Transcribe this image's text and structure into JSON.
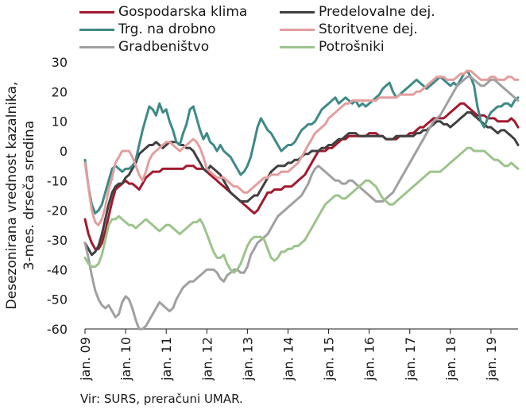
{
  "chart_data": {
    "type": "line",
    "ylabel": [
      "Desezonirana vrednost kazalnika,",
      "3-mes. drseča sredina"
    ],
    "ylim": [
      -60,
      30
    ],
    "yticks": [
      30,
      20,
      10,
      0,
      -10,
      -20,
      -30,
      -40,
      -50,
      -60
    ],
    "x_start": "2009-01",
    "x_end": "2019-04",
    "xtick_labels": [
      "jan. 09",
      "jan. 10",
      "jan. 11",
      "jan. 12",
      "jan. 13",
      "jan. 14",
      "jan. 15",
      "jan. 16",
      "jan. 17",
      "jan. 18",
      "jan. 19"
    ],
    "legend_position": "top",
    "source": "Vir: SURS, preračuni UMAR.",
    "series": [
      {
        "name": "Gospodarska klima",
        "color": "#A3192E",
        "values": [
          -23,
          -28,
          -31,
          -33,
          -33,
          -31,
          -27,
          -22,
          -17,
          -13,
          -12,
          -11,
          -10,
          -11,
          -11,
          -12,
          -13,
          -11,
          -9,
          -8,
          -7,
          -7,
          -7,
          -6,
          -6,
          -6,
          -6,
          -6,
          -6,
          -6,
          -5,
          -5,
          -5,
          -6,
          -6,
          -6,
          -7,
          -8,
          -9,
          -10,
          -11,
          -12,
          -13,
          -14,
          -15,
          -16,
          -17,
          -18,
          -19,
          -20,
          -21,
          -20,
          -18,
          -16,
          -14,
          -14,
          -13,
          -13,
          -13,
          -12,
          -12,
          -12,
          -11,
          -10,
          -9,
          -8,
          -6,
          -4,
          -2,
          0,
          0,
          0,
          1,
          1,
          2,
          3,
          4,
          4,
          5,
          5,
          5,
          5,
          5,
          5,
          6,
          6,
          6,
          5,
          5,
          4,
          4,
          4,
          4,
          5,
          5,
          5,
          6,
          6,
          7,
          8,
          8,
          9,
          10,
          11,
          11,
          11,
          11,
          12,
          13,
          14,
          15,
          16,
          16,
          15,
          14,
          13,
          12,
          12,
          12,
          11,
          11,
          11,
          10,
          10,
          10,
          10,
          11,
          10,
          8
        ]
      },
      {
        "name": "Predelovalne dej.",
        "color": "#404040",
        "values": [
          -31,
          -33,
          -35,
          -34,
          -32,
          -28,
          -23,
          -18,
          -14,
          -12,
          -11,
          -11,
          -9,
          -8,
          -6,
          -4,
          -1,
          0,
          1,
          2,
          2,
          3,
          2,
          1,
          2,
          3,
          3,
          3,
          2,
          2,
          1,
          1,
          0,
          -2,
          -4,
          -6,
          -7,
          -5,
          -6,
          -7,
          -8,
          -10,
          -12,
          -14,
          -15,
          -16,
          -17,
          -17,
          -17,
          -16,
          -15,
          -15,
          -13,
          -11,
          -9,
          -7,
          -6,
          -5,
          -5,
          -5,
          -4,
          -4,
          -3,
          -3,
          -2,
          -1,
          -1,
          0,
          0,
          0,
          1,
          1,
          2,
          2,
          3,
          4,
          4,
          5,
          6,
          6,
          6,
          5,
          5,
          5,
          5,
          5,
          5,
          5,
          5,
          4,
          4,
          4,
          5,
          5,
          5,
          5,
          5,
          5,
          6,
          6,
          7,
          7,
          8,
          9,
          10,
          10,
          9,
          9,
          8,
          9,
          10,
          11,
          12,
          13,
          13,
          12,
          11,
          10,
          9,
          8,
          8,
          7,
          6,
          7,
          7,
          6,
          5,
          4,
          2
        ]
      },
      {
        "name": "Trg. na drobno",
        "color": "#3E8A86",
        "values": [
          -3,
          -12,
          -18,
          -21,
          -20,
          -18,
          -14,
          -10,
          -6,
          -5,
          -6,
          -7,
          -6,
          -6,
          -5,
          -3,
          2,
          7,
          11,
          15,
          14,
          12,
          16,
          13,
          14,
          10,
          7,
          3,
          2,
          6,
          9,
          14,
          15,
          11,
          7,
          4,
          6,
          3,
          2,
          0,
          2,
          0,
          -1,
          -2,
          -4,
          -6,
          -8,
          -7,
          -5,
          -2,
          3,
          8,
          11,
          9,
          7,
          6,
          4,
          2,
          0,
          1,
          2,
          2,
          3,
          5,
          7,
          8,
          9,
          9,
          10,
          12,
          14,
          15,
          16,
          17,
          18,
          16,
          17,
          18,
          17,
          16,
          17,
          15,
          16,
          15,
          16,
          17,
          18,
          19,
          21,
          22,
          23,
          20,
          18,
          19,
          20,
          21,
          22,
          23,
          24,
          23,
          22,
          21,
          22,
          23,
          24,
          25,
          24,
          23,
          22,
          23,
          22,
          24,
          26,
          27,
          25,
          22,
          15,
          10,
          8,
          11,
          13,
          14,
          15,
          15,
          16,
          16,
          15,
          17,
          18
        ]
      },
      {
        "name": "Storitvene dej.",
        "color": "#E39E9E",
        "values": [
          -4,
          -12,
          -20,
          -24,
          -25,
          -23,
          -19,
          -13,
          -9,
          -4,
          -2,
          0,
          0,
          0,
          -2,
          -5,
          -8,
          -10,
          -7,
          -3,
          -1,
          0,
          1,
          2,
          3,
          3,
          2,
          1,
          0,
          1,
          2,
          3,
          4,
          3,
          1,
          -2,
          -6,
          -7,
          -8,
          -9,
          -9,
          -9,
          -10,
          -11,
          -12,
          -12,
          -13,
          -14,
          -14,
          -13,
          -12,
          -11,
          -10,
          -9,
          -9,
          -8,
          -8,
          -8,
          -7,
          -7,
          -7,
          -6,
          -5,
          -4,
          -2,
          0,
          2,
          4,
          6,
          7,
          8,
          9,
          11,
          12,
          13,
          14,
          15,
          16,
          16,
          17,
          17,
          17,
          17,
          17,
          17,
          17,
          17,
          18,
          18,
          18,
          18,
          18,
          18,
          19,
          19,
          19,
          19,
          19,
          20,
          20,
          21,
          22,
          23,
          24,
          25,
          25,
          25,
          24,
          24,
          24,
          25,
          26,
          26,
          27,
          27,
          26,
          25,
          24,
          24,
          24,
          25,
          25,
          24,
          24,
          24,
          25,
          25,
          24,
          24
        ]
      },
      {
        "name": "Gradbeništvo",
        "color": "#A0A0A0",
        "values": [
          -31,
          -36,
          -42,
          -47,
          -50,
          -52,
          -53,
          -52,
          -54,
          -56,
          -55,
          -51,
          -49,
          -50,
          -53,
          -57,
          -60,
          -60,
          -59,
          -57,
          -55,
          -53,
          -51,
          -52,
          -53,
          -54,
          -53,
          -50,
          -48,
          -46,
          -45,
          -44,
          -44,
          -43,
          -42,
          -41,
          -40,
          -40,
          -40,
          -41,
          -43,
          -44,
          -42,
          -41,
          -40,
          -40,
          -41,
          -41,
          -39,
          -35,
          -33,
          -31,
          -30,
          -29,
          -28,
          -26,
          -24,
          -22,
          -21,
          -20,
          -19,
          -18,
          -17,
          -16,
          -15,
          -13,
          -11,
          -8,
          -6,
          -5,
          -6,
          -7,
          -8,
          -9,
          -10,
          -10,
          -11,
          -11,
          -10,
          -10,
          -11,
          -12,
          -13,
          -14,
          -15,
          -16,
          -17,
          -17,
          -17,
          -16,
          -15,
          -14,
          -12,
          -10,
          -8,
          -6,
          -4,
          -2,
          0,
          2,
          4,
          6,
          8,
          10,
          11,
          12,
          14,
          16,
          18,
          20,
          22,
          23,
          24,
          25,
          25,
          24,
          23,
          22,
          22,
          23,
          24,
          24,
          23,
          22,
          21,
          20,
          19,
          18,
          17
        ]
      },
      {
        "name": "Potrošniki",
        "color": "#9CC48C",
        "values": [
          -36,
          -38,
          -39,
          -39,
          -38,
          -35,
          -30,
          -25,
          -23,
          -23,
          -22,
          -23,
          -24,
          -25,
          -25,
          -26,
          -25,
          -24,
          -23,
          -24,
          -25,
          -26,
          -27,
          -26,
          -25,
          -25,
          -26,
          -27,
          -28,
          -27,
          -26,
          -25,
          -24,
          -24,
          -23,
          -25,
          -28,
          -31,
          -34,
          -36,
          -36,
          -35,
          -38,
          -40,
          -41,
          -40,
          -38,
          -35,
          -32,
          -30,
          -29,
          -29,
          -29,
          -30,
          -33,
          -36,
          -37,
          -36,
          -34,
          -34,
          -33,
          -33,
          -32,
          -32,
          -31,
          -30,
          -28,
          -26,
          -24,
          -22,
          -20,
          -18,
          -17,
          -16,
          -15,
          -15,
          -16,
          -16,
          -15,
          -14,
          -13,
          -12,
          -11,
          -10,
          -10,
          -11,
          -12,
          -14,
          -16,
          -17,
          -18,
          -18,
          -17,
          -16,
          -15,
          -14,
          -13,
          -12,
          -11,
          -10,
          -9,
          -8,
          -7,
          -7,
          -7,
          -7,
          -6,
          -5,
          -4,
          -3,
          -2,
          -1,
          0,
          1,
          1,
          0,
          0,
          0,
          0,
          -1,
          -2,
          -3,
          -3,
          -4,
          -5,
          -5,
          -4,
          -5,
          -6
        ]
      }
    ]
  }
}
